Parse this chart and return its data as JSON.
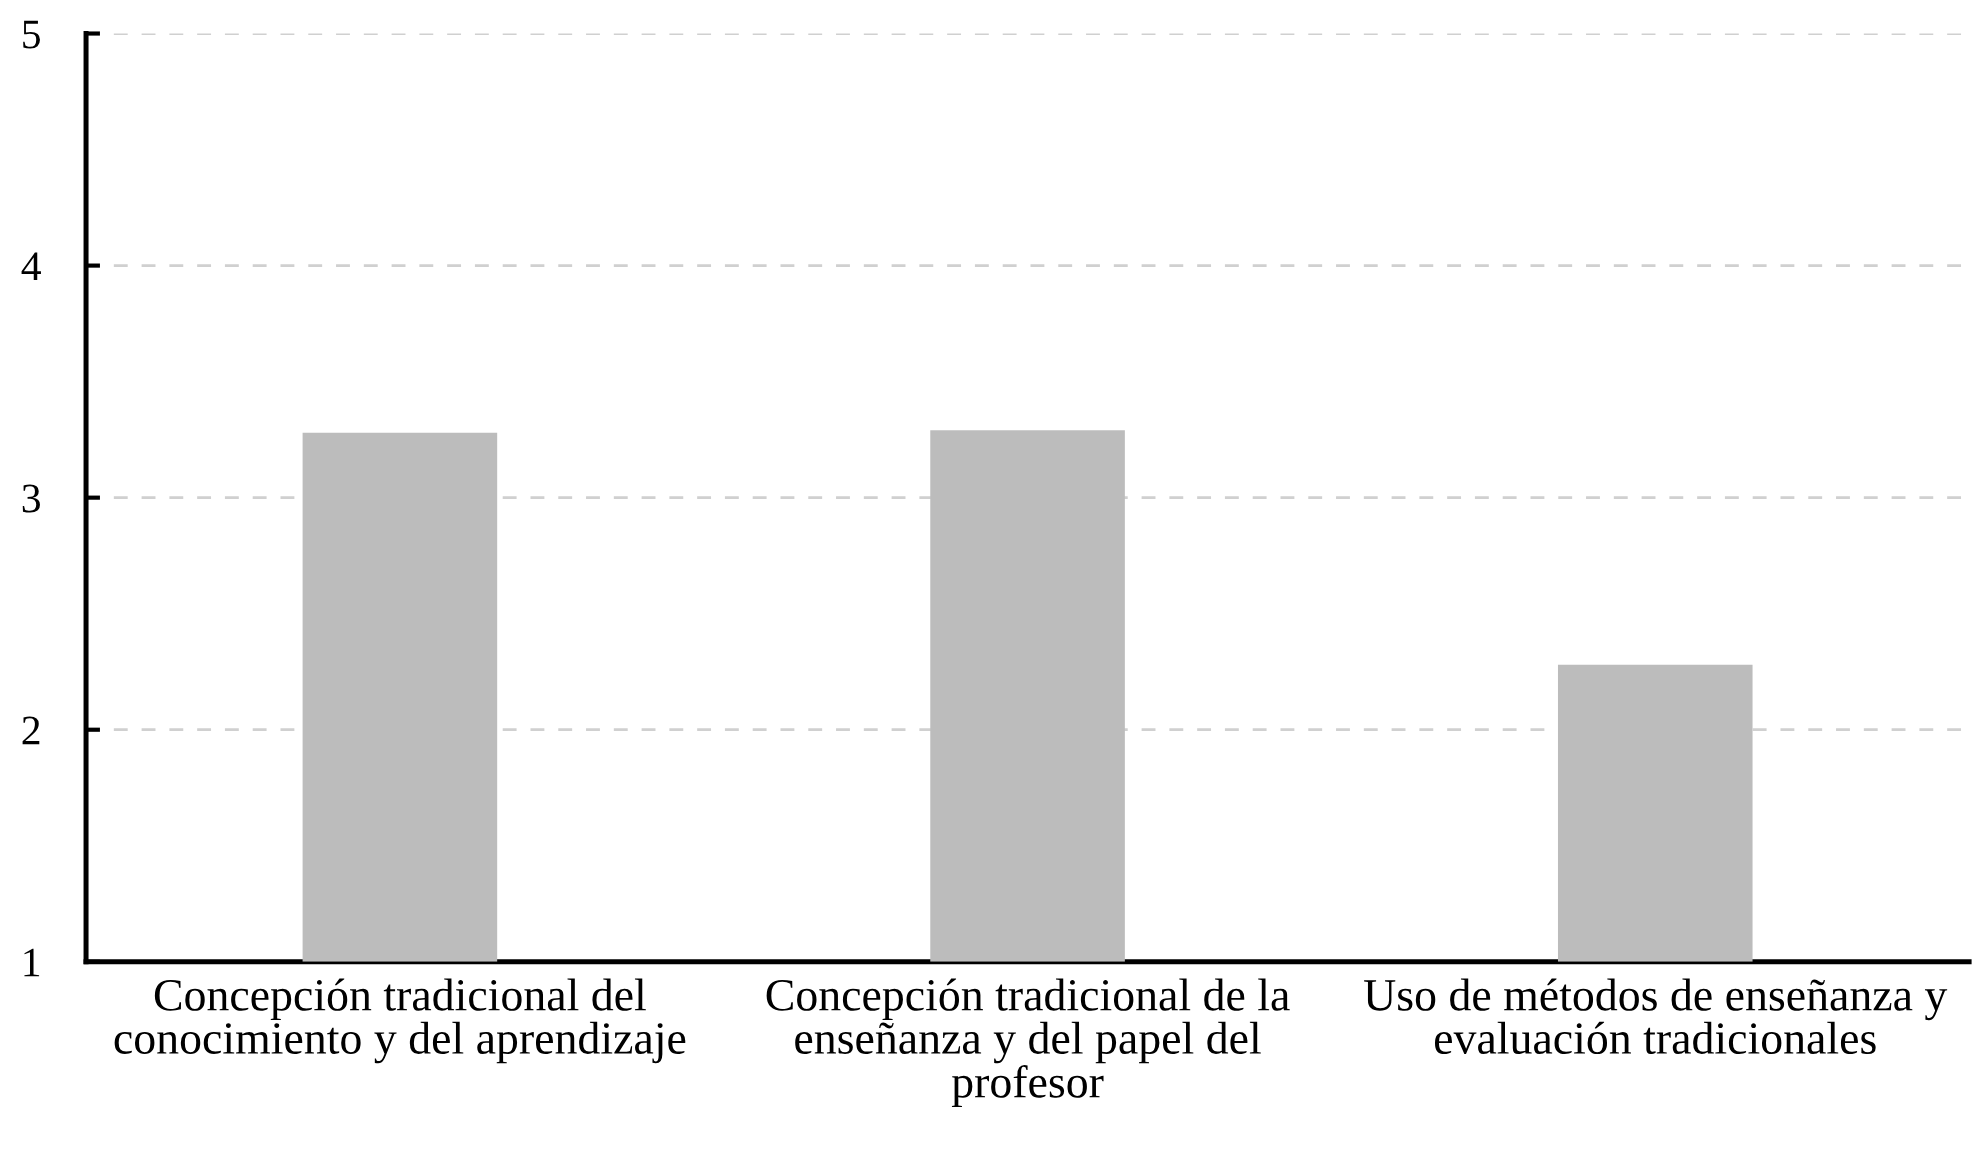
{
  "chart_data": {
    "type": "bar",
    "categories": [
      "Concepción tradicional del\nconocimiento y del aprendizaje",
      "Concepción tradicional de la\nenseñanza y del papel del\nprofesor",
      "Uso de métodos de enseñanza y\nevaluación tradicionales"
    ],
    "values": [
      3.28,
      3.29,
      2.28
    ],
    "color": "#bcbcbc",
    "ylim": [
      1,
      5
    ],
    "yticks": [
      1,
      2,
      3,
      4,
      5
    ],
    "grid": "y",
    "legend": false
  }
}
